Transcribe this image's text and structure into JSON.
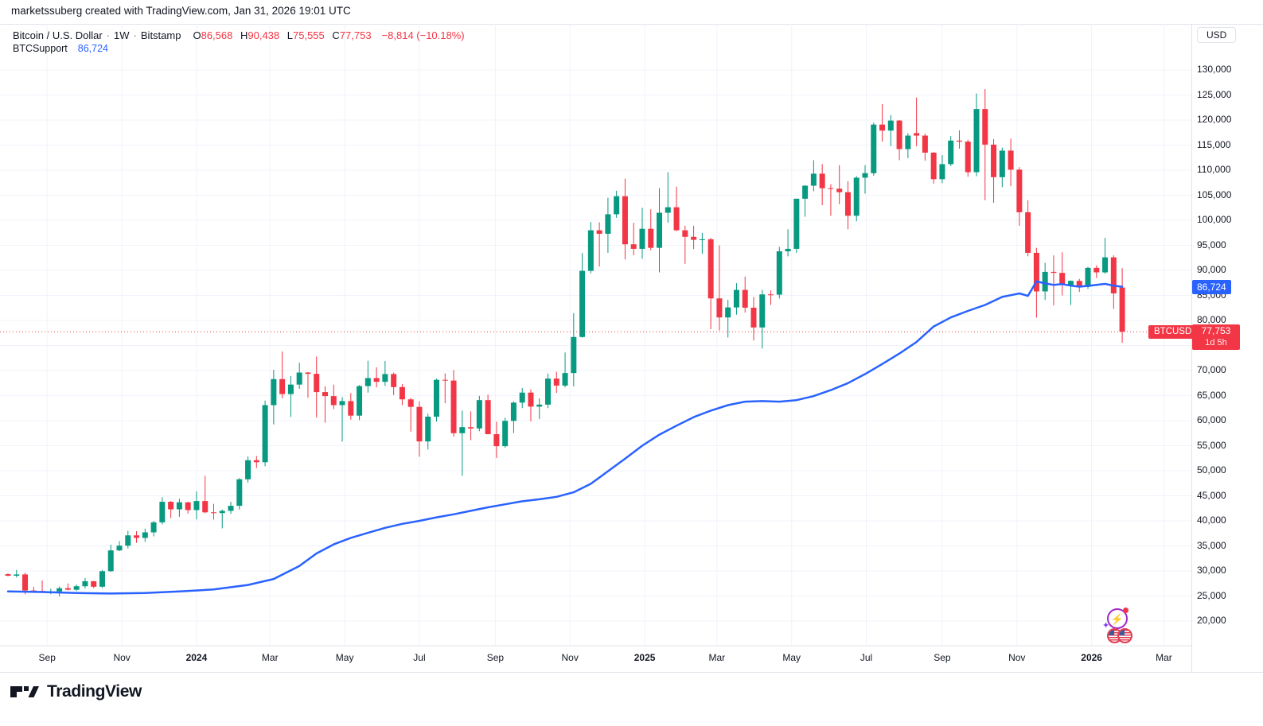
{
  "attribution": "marketssuberg created with TradingView.com, Jan 31, 2026 19:01 UTC",
  "legend": {
    "symbol_title": "Bitcoin / U.S. Dollar",
    "sep": "·",
    "interval": "1W",
    "exchange": "Bitstamp",
    "open_label": "O",
    "open": "86,568",
    "high_label": "H",
    "high": "90,438",
    "low_label": "L",
    "low": "75,555",
    "close_label": "C",
    "close": "77,753",
    "change": "−8,814 (−10.18%)",
    "indicator_name": "BTCSupport",
    "indicator_value": "86,724"
  },
  "price_axis": {
    "currency_button": "USD",
    "support_badge": "86,724",
    "price_badge": "77,753",
    "countdown": "1d 5h",
    "symbol_label": "BTCUSD"
  },
  "footer": {
    "logo_text": "TradingView"
  },
  "icons": {
    "events": "lightning-events-icon",
    "flags": "us-economic-events-icon"
  },
  "colors": {
    "up": "#089981",
    "down": "#f23645",
    "support_line": "#2962ff",
    "current_price": "#f23645",
    "grid": "#f0f3fa",
    "axis_border": "#e0e3eb"
  },
  "chart_data": {
    "type": "candlestick",
    "title": "Bitcoin / U.S. Dollar",
    "symbol": "BTCUSD",
    "interval": "1W",
    "exchange": "Bitstamp",
    "current_price": 77753,
    "support_value": 86724,
    "price_axis": {
      "min": 20000,
      "max": 130000,
      "step": 5000
    },
    "time_labels": [
      {
        "label": "Sep",
        "week": 4.57
      },
      {
        "label": "Nov",
        "week": 13.29
      },
      {
        "label": "2024",
        "week": 22.0,
        "year": true
      },
      {
        "label": "Mar",
        "week": 30.57
      },
      {
        "label": "May",
        "week": 39.29
      },
      {
        "label": "Jul",
        "week": 48.0
      },
      {
        "label": "Sep",
        "week": 56.86
      },
      {
        "label": "Nov",
        "week": 65.57
      },
      {
        "label": "2025",
        "week": 74.29,
        "year": true
      },
      {
        "label": "Mar",
        "week": 82.71
      },
      {
        "label": "May",
        "week": 91.43
      },
      {
        "label": "Jul",
        "week": 100.14
      },
      {
        "label": "Sep",
        "week": 109.0
      },
      {
        "label": "Nov",
        "week": 117.71
      },
      {
        "label": "2026",
        "week": 126.43,
        "year": true
      },
      {
        "label": "Mar",
        "week": 134.86
      }
    ],
    "candles_ohlc": [
      [
        29350,
        29550,
        28900,
        29050
      ],
      [
        29050,
        30200,
        28700,
        29300
      ],
      [
        29300,
        29650,
        25350,
        26100
      ],
      [
        26100,
        26850,
        25700,
        26000
      ],
      [
        26000,
        28100,
        25600,
        25850
      ],
      [
        25850,
        26450,
        25350,
        25900
      ],
      [
        25900,
        26900,
        24900,
        26550
      ],
      [
        26550,
        27500,
        26100,
        26250
      ],
      [
        26250,
        27300,
        26000,
        26950
      ],
      [
        26950,
        28600,
        26500,
        27950
      ],
      [
        27950,
        28000,
        26550,
        26850
      ],
      [
        26850,
        30200,
        26600,
        29950
      ],
      [
        29950,
        35250,
        29800,
        34100
      ],
      [
        34100,
        35950,
        33950,
        35050
      ],
      [
        35050,
        38000,
        34500,
        37100
      ],
      [
        37100,
        37950,
        35600,
        36600
      ],
      [
        36600,
        38450,
        35800,
        37700
      ],
      [
        37700,
        40000,
        36900,
        39700
      ],
      [
        39700,
        44700,
        39300,
        43800
      ],
      [
        43800,
        43950,
        40550,
        42300
      ],
      [
        42300,
        44400,
        40800,
        43700
      ],
      [
        43700,
        43800,
        41450,
        42150
      ],
      [
        42150,
        45900,
        40300,
        43950
      ],
      [
        43950,
        49000,
        41500,
        41700
      ],
      [
        41700,
        43400,
        40250,
        41550
      ],
      [
        41550,
        42250,
        38500,
        42000
      ],
      [
        42000,
        43800,
        41400,
        43000
      ],
      [
        43000,
        48550,
        42250,
        48300
      ],
      [
        48300,
        52850,
        47650,
        52100
      ],
      [
        52100,
        52950,
        50550,
        51700
      ],
      [
        51700,
        64000,
        50900,
        63100
      ],
      [
        63100,
        70150,
        59250,
        68300
      ],
      [
        68300,
        73800,
        64450,
        65300
      ],
      [
        65300,
        68900,
        60750,
        67200
      ],
      [
        67200,
        71550,
        66350,
        69600
      ],
      [
        69600,
        69700,
        64550,
        69350
      ],
      [
        69350,
        72800,
        60600,
        65700
      ],
      [
        65700,
        66850,
        59600,
        64900
      ],
      [
        64900,
        67200,
        62300,
        63100
      ],
      [
        63100,
        64700,
        55800,
        63900
      ],
      [
        63900,
        65500,
        60200,
        61000
      ],
      [
        61000,
        67100,
        60100,
        66900
      ],
      [
        66900,
        71950,
        65600,
        68500
      ],
      [
        68500,
        70650,
        66650,
        67750
      ],
      [
        67750,
        71900,
        66900,
        69300
      ],
      [
        69300,
        69600,
        65100,
        66700
      ],
      [
        66700,
        67300,
        63100,
        64250
      ],
      [
        64250,
        64550,
        57800,
        62750
      ],
      [
        62750,
        63850,
        52800,
        55850
      ],
      [
        55850,
        61400,
        54250,
        60800
      ],
      [
        60800,
        68400,
        59800,
        68150
      ],
      [
        68150,
        69450,
        63500,
        68000
      ],
      [
        68000,
        70100,
        56800,
        57500
      ],
      [
        57500,
        62000,
        49000,
        58700
      ],
      [
        58700,
        61850,
        56100,
        58450
      ],
      [
        58450,
        64950,
        57900,
        64100
      ],
      [
        64100,
        65200,
        57250,
        57300
      ],
      [
        57300,
        59800,
        52550,
        54900
      ],
      [
        54900,
        60600,
        54600,
        59950
      ],
      [
        59950,
        63850,
        57500,
        63600
      ],
      [
        63600,
        66500,
        62500,
        65600
      ],
      [
        65600,
        66250,
        59850,
        62800
      ],
      [
        62800,
        64450,
        60300,
        63200
      ],
      [
        63200,
        69400,
        62500,
        68400
      ],
      [
        68400,
        69750,
        65550,
        67000
      ],
      [
        67000,
        73600,
        66650,
        69500
      ],
      [
        69500,
        81450,
        66850,
        76700
      ],
      [
        76700,
        93450,
        76550,
        89900
      ],
      [
        89900,
        99650,
        89400,
        98000
      ],
      [
        98000,
        99600,
        90800,
        97300
      ],
      [
        97300,
        104500,
        93500,
        101200
      ],
      [
        101200,
        105900,
        100500,
        104800
      ],
      [
        104800,
        108300,
        92200,
        95200
      ],
      [
        95200,
        99500,
        93000,
        94300
      ],
      [
        94300,
        102500,
        92300,
        98300
      ],
      [
        98300,
        102200,
        94000,
        94500
      ],
      [
        94500,
        106400,
        89600,
        101500
      ],
      [
        101500,
        109600,
        99500,
        102600
      ],
      [
        102600,
        106700,
        97800,
        98000
      ],
      [
        98000,
        98900,
        91300,
        96700
      ],
      [
        96700,
        98900,
        94250,
        96100
      ],
      [
        96100,
        97500,
        93300,
        96200
      ],
      [
        96200,
        96500,
        78250,
        84400
      ],
      [
        84400,
        95000,
        78000,
        80600
      ],
      [
        80600,
        84100,
        76600,
        82600
      ],
      [
        82600,
        87450,
        81150,
        86100
      ],
      [
        86100,
        88750,
        81550,
        82550
      ],
      [
        82550,
        84700,
        76000,
        78600
      ],
      [
        78600,
        86100,
        74400,
        85200
      ],
      [
        85200,
        86000,
        83100,
        85150
      ],
      [
        85150,
        94700,
        84400,
        93800
      ],
      [
        93800,
        98200,
        92800,
        94300
      ],
      [
        94300,
        104300,
        93500,
        104300
      ],
      [
        104300,
        107000,
        100700,
        106900
      ],
      [
        106900,
        112000,
        105800,
        109300
      ],
      [
        109300,
        111200,
        103000,
        106400
      ],
      [
        106400,
        107200,
        100900,
        106300
      ],
      [
        106300,
        111000,
        103200,
        105600
      ],
      [
        105600,
        107800,
        98200,
        100900
      ],
      [
        100900,
        108800,
        99800,
        108500
      ],
      [
        108500,
        111000,
        105300,
        109400
      ],
      [
        109400,
        119500,
        108900,
        119100
      ],
      [
        119100,
        123200,
        115700,
        117900
      ],
      [
        117900,
        121000,
        114800,
        119900
      ],
      [
        119900,
        120000,
        112000,
        114200
      ],
      [
        114200,
        117400,
        112400,
        116900
      ],
      [
        117400,
        124500,
        114800,
        116900
      ],
      [
        116900,
        117300,
        111900,
        113500
      ],
      [
        113500,
        113600,
        107300,
        108200
      ],
      [
        108200,
        113000,
        107400,
        111200
      ],
      [
        111200,
        116800,
        110800,
        115900
      ],
      [
        115900,
        117950,
        114300,
        115700
      ],
      [
        115700,
        116100,
        108700,
        109600
      ],
      [
        109600,
        125300,
        108800,
        122200
      ],
      [
        122200,
        126200,
        104000,
        115100
      ],
      [
        115100,
        116200,
        103500,
        108600
      ],
      [
        108600,
        114500,
        106600,
        113900
      ],
      [
        113900,
        116300,
        106800,
        110100
      ],
      [
        110100,
        110600,
        98900,
        101600
      ],
      [
        101600,
        104000,
        92800,
        93500
      ],
      [
        93500,
        94500,
        80550,
        85800
      ],
      [
        85800,
        91500,
        84100,
        89700
      ],
      [
        89700,
        93000,
        83000,
        89500
      ],
      [
        89500,
        93600,
        85000,
        87100
      ],
      [
        87100,
        88000,
        83100,
        87900
      ],
      [
        87900,
        88300,
        85700,
        86700
      ],
      [
        86700,
        90700,
        86300,
        90500
      ],
      [
        90500,
        91000,
        88500,
        89600
      ],
      [
        89600,
        96500,
        89300,
        92600
      ],
      [
        92600,
        93000,
        82300,
        85400
      ],
      [
        86568,
        90438,
        75555,
        77753
      ]
    ],
    "support_line": [
      [
        0,
        25900
      ],
      [
        4,
        25800
      ],
      [
        8,
        25600
      ],
      [
        12,
        25500
      ],
      [
        16,
        25600
      ],
      [
        20,
        25900
      ],
      [
        24,
        26300
      ],
      [
        28,
        27200
      ],
      [
        31,
        28400
      ],
      [
        34,
        31000
      ],
      [
        36,
        33500
      ],
      [
        38,
        35300
      ],
      [
        40,
        36600
      ],
      [
        42,
        37600
      ],
      [
        44,
        38600
      ],
      [
        46,
        39400
      ],
      [
        48,
        40000
      ],
      [
        50,
        40700
      ],
      [
        52,
        41300
      ],
      [
        54,
        42000
      ],
      [
        56,
        42700
      ],
      [
        58,
        43300
      ],
      [
        60,
        43900
      ],
      [
        62,
        44300
      ],
      [
        64,
        44800
      ],
      [
        66,
        45700
      ],
      [
        68,
        47400
      ],
      [
        70,
        49900
      ],
      [
        72,
        52400
      ],
      [
        74,
        55000
      ],
      [
        76,
        57200
      ],
      [
        78,
        59000
      ],
      [
        80,
        60700
      ],
      [
        82,
        62000
      ],
      [
        84,
        63100
      ],
      [
        86,
        63800
      ],
      [
        88,
        63900
      ],
      [
        90,
        63800
      ],
      [
        92,
        64100
      ],
      [
        94,
        64900
      ],
      [
        96,
        66100
      ],
      [
        98,
        67500
      ],
      [
        100,
        69300
      ],
      [
        102,
        71300
      ],
      [
        104,
        73400
      ],
      [
        106,
        75700
      ],
      [
        108,
        78800
      ],
      [
        110,
        80600
      ],
      [
        112,
        81900
      ],
      [
        114,
        83100
      ],
      [
        116,
        84700
      ],
      [
        118,
        85400
      ],
      [
        119,
        84900
      ],
      [
        120,
        87800
      ],
      [
        121,
        87400
      ],
      [
        122,
        87100
      ],
      [
        123,
        87250
      ],
      [
        124,
        86950
      ],
      [
        125,
        86750
      ],
      [
        126,
        86900
      ],
      [
        127,
        87100
      ],
      [
        128,
        87300
      ],
      [
        129,
        86950
      ],
      [
        130,
        86724
      ]
    ]
  }
}
